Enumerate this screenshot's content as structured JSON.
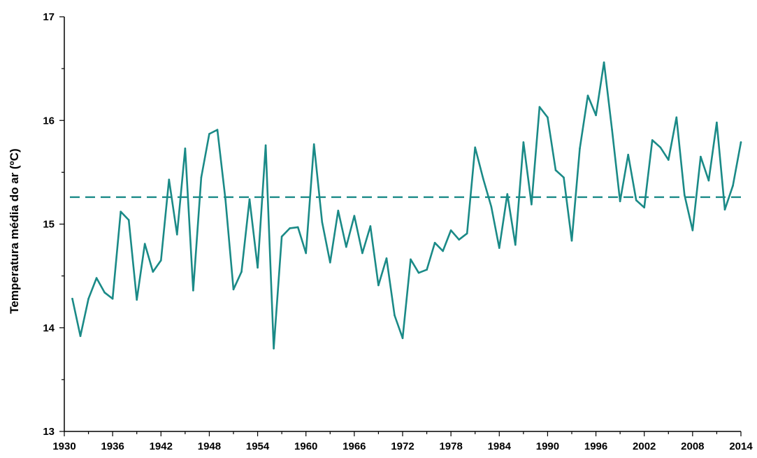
{
  "chart_data": {
    "type": "line",
    "title": "",
    "xlabel": "",
    "ylabel": "Temperatura média do ar (ºC)",
    "xlim": [
      1930,
      2014
    ],
    "ylim": [
      13,
      17
    ],
    "x_ticks": [
      1930,
      1936,
      1942,
      1948,
      1954,
      1960,
      1966,
      1972,
      1978,
      1984,
      1990,
      1996,
      2002,
      2008,
      2014
    ],
    "y_ticks": [
      13,
      14,
      15,
      16,
      17
    ],
    "grid": false,
    "legend": "none",
    "color": "#1a8a87",
    "series": [
      {
        "x": [
          1931,
          1932,
          1933,
          1934,
          1935,
          1936,
          1937,
          1938,
          1939,
          1940,
          1941,
          1942,
          1943,
          1944,
          1945,
          1946,
          1947,
          1948,
          1949,
          1950,
          1951,
          1952,
          1953,
          1954,
          1955,
          1956,
          1957,
          1958,
          1959,
          1960,
          1961,
          1962,
          1963,
          1964,
          1965,
          1966,
          1967,
          1968,
          1969,
          1970,
          1971,
          1972,
          1973,
          1974,
          1975,
          1976,
          1977,
          1978,
          1979,
          1980,
          1981,
          1982,
          1983,
          1984,
          1985,
          1986,
          1987,
          1988,
          1989,
          1990,
          1991,
          1992,
          1993,
          1994,
          1995,
          1996,
          1997,
          1998,
          1999,
          2000,
          2001,
          2002,
          2003,
          2004,
          2005,
          2006,
          2007,
          2008,
          2009,
          2010,
          2011,
          2012,
          2013,
          2014
        ],
        "values": [
          14.28,
          13.92,
          14.28,
          14.48,
          14.34,
          14.28,
          15.12,
          15.04,
          14.27,
          14.81,
          14.54,
          14.65,
          15.43,
          14.9,
          15.73,
          14.36,
          15.45,
          15.87,
          15.91,
          15.24,
          14.37,
          14.54,
          15.24,
          14.58,
          15.76,
          13.8,
          14.88,
          14.96,
          14.97,
          14.72,
          15.77,
          15.02,
          14.63,
          15.13,
          14.78,
          15.08,
          14.72,
          14.98,
          14.41,
          14.67,
          14.12,
          13.9,
          14.66,
          14.53,
          14.56,
          14.82,
          14.74,
          14.94,
          14.85,
          14.91,
          15.74,
          15.44,
          15.17,
          14.77,
          15.29,
          14.8,
          15.79,
          15.19,
          16.13,
          16.03,
          15.52,
          15.45,
          14.84,
          15.73,
          16.24,
          16.05,
          16.56,
          15.91,
          15.22,
          15.67,
          15.23,
          15.16,
          15.81,
          15.74,
          15.62,
          16.03,
          15.28,
          14.94,
          15.65,
          15.42,
          15.98,
          15.14,
          15.37,
          15.79
        ]
      }
    ],
    "reference_lines": [
      {
        "y": 15.26,
        "style": "dashed"
      }
    ]
  }
}
